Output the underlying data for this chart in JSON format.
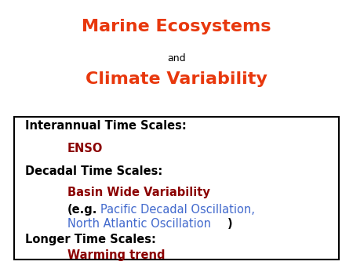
{
  "title_line1": "Marine Ecosystems",
  "title_and": "and",
  "title_line2": "Climate Variability",
  "title_color": "#E8380D",
  "title_and_color": "#000000",
  "bg_color": "#ffffff",
  "box_color": "#000000",
  "blue_color": "#4169CD",
  "black_color": "#000000",
  "dark_red": "#8B0000",
  "title1_fs": 16,
  "title2_fs": 11,
  "title3_fs": 16,
  "body_fs": 10.5,
  "body_bold_fs": 10.5
}
